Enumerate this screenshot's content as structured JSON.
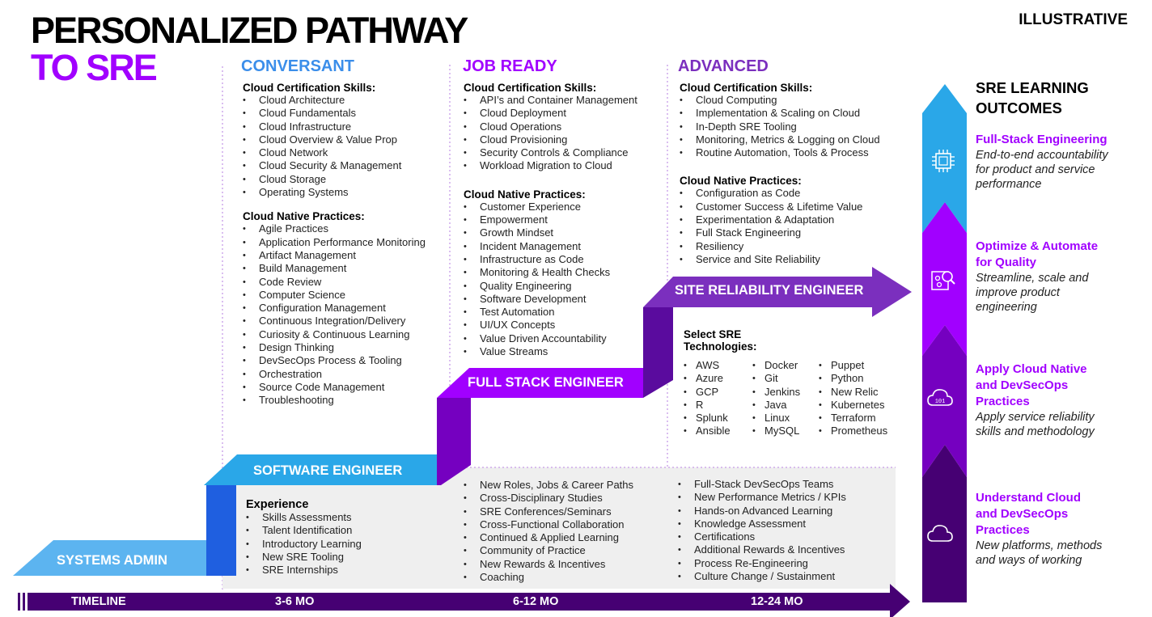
{
  "title": {
    "line1": "PERSONALIZED PATHWAY",
    "line2": "TO SRE"
  },
  "tag": "ILLUSTRATIVE",
  "columns": [
    {
      "heading": "CONVERSANT",
      "color": "#3b8eea",
      "cert_title": "Cloud Certification Skills:",
      "cert_items": [
        "Cloud Architecture",
        "Cloud Fundamentals",
        "Cloud Infrastructure",
        "Cloud Overview & Value Prop",
        "Cloud Network",
        "Cloud Security & Management",
        "Cloud Storage",
        "Operating Systems"
      ],
      "practice_title": "Cloud Native Practices:",
      "practice_items": [
        "Agile Practices",
        "Application Performance Monitoring",
        "Artifact Management",
        "Build Management",
        "Code Review",
        "Computer Science",
        "Configuration Management",
        "Continuous Integration/Delivery",
        "Curiosity & Continuous Learning",
        "Design Thinking",
        "DevSecOps Process & Tooling",
        "Orchestration",
        "Source Code Management",
        "Troubleshooting"
      ]
    },
    {
      "heading": "JOB READY",
      "color": "#a100ff",
      "cert_title": "Cloud Certification Skills:",
      "cert_items": [
        "API’s and Container Management",
        "Cloud Deployment",
        "Cloud Operations",
        "Cloud Provisioning",
        "Security Controls & Compliance",
        "Workload Migration to Cloud"
      ],
      "practice_title": "Cloud Native Practices:",
      "practice_items": [
        "Customer Experience",
        "Empowerment",
        "Growth Mindset",
        "Incident Management",
        "Infrastructure as Code",
        "Monitoring & Health Checks",
        "Quality Engineering",
        "Software Development",
        "Test Automation",
        "UI/UX Concepts",
        "Value Driven Accountability",
        "Value Streams"
      ]
    },
    {
      "heading": "ADVANCED",
      "color": "#7b2fbe",
      "cert_title": "Cloud Certification Skills:",
      "cert_items": [
        "Cloud Computing",
        "Implementation & Scaling on Cloud",
        "In-Depth SRE Tooling",
        "Monitoring, Metrics & Logging on Cloud",
        "Routine Automation, Tools & Process"
      ],
      "practice_title": "Cloud Native Practices:",
      "practice_items": [
        "Configuration as Code",
        "Customer Success & Lifetime Value",
        "Experimentation & Adaptation",
        "Full Stack Engineering",
        "Resiliency",
        "Service and Site Reliability"
      ]
    }
  ],
  "steps": {
    "systems_admin": "SYSTEMS ADMIN",
    "software_engineer": "SOFTWARE ENGINEER",
    "full_stack_engineer": "FULL STACK ENGINEER",
    "site_reliability_engineer": "SITE RELIABILITY ENGINEER"
  },
  "experience": {
    "title": "Experience",
    "items": [
      "Skills Assessments",
      "Talent Identification",
      "Introductory Learning",
      "New SRE Tooling",
      "SRE Internships"
    ]
  },
  "bottom_mid": [
    "New Roles, Jobs & Career Paths",
    "Cross-Disciplinary Studies",
    "SRE Conferences/Seminars",
    "Cross-Functional Collaboration",
    "Continued & Applied Learning",
    "Community of Practice",
    "New Rewards & Incentives",
    "Coaching"
  ],
  "bottom_right": [
    "Full-Stack DevSecOps Teams",
    "New Performance Metrics / KPIs",
    "Hands-on Advanced Learning",
    "Knowledge Assessment",
    "Certifications",
    "Additional Rewards & Incentives",
    "Process Re-Engineering",
    "Culture Change / Sustainment"
  ],
  "technologies": {
    "title_line1": "Select SRE",
    "title_line2": "Technologies:",
    "col1": [
      "AWS",
      "Azure",
      "GCP",
      "R",
      "Splunk",
      "Ansible"
    ],
    "col2": [
      "Docker",
      "Git",
      "Jenkins",
      "Java",
      "Linux",
      "MySQL"
    ],
    "col3": [
      "Puppet",
      "Python",
      "New Relic",
      "Kubernetes",
      "Terraform",
      "Prometheus"
    ]
  },
  "timeline": {
    "label": "TIMELINE",
    "m1": "3-6 MO",
    "m2": "6-12 MO",
    "m3": "12-24 MO"
  },
  "outcomes": {
    "heading_line1": "SRE LEARNING",
    "heading_line2": "OUTCOMES",
    "items": [
      {
        "title_l1": "Full-Stack Engineering",
        "title_l2": "",
        "title_l3": "",
        "desc_l1": "End-to-end accountability",
        "desc_l2": "for product and service",
        "desc_l3": "performance",
        "icon": "chip-icon"
      },
      {
        "title_l1": "Optimize & Automate",
        "title_l2": "for Quality",
        "title_l3": "",
        "desc_l1": "Streamline, scale and",
        "desc_l2": "improve product",
        "desc_l3": "engineering",
        "icon": "gear-search-icon"
      },
      {
        "title_l1": "Apply Cloud Native",
        "title_l2": "and DevSecOps",
        "title_l3": "Practices",
        "desc_l1": "Apply service reliability",
        "desc_l2": "skills and methodology",
        "desc_l3": "",
        "icon": "cloud-binary-icon"
      },
      {
        "title_l1": "Understand Cloud",
        "title_l2": "and DevSecOps",
        "title_l3": "Practices",
        "desc_l1": "New platforms, methods",
        "desc_l2": "and ways of working",
        "desc_l3": "",
        "icon": "cloud-icon"
      }
    ]
  },
  "colors": {
    "purple": "#a100ff",
    "dark_purple": "#460073",
    "mid_purple": "#7500c0",
    "light_blue": "#5cb4f0",
    "sky_blue": "#2aa7e8",
    "blue": "#1f5fe0",
    "gray_panel": "#efefef"
  }
}
